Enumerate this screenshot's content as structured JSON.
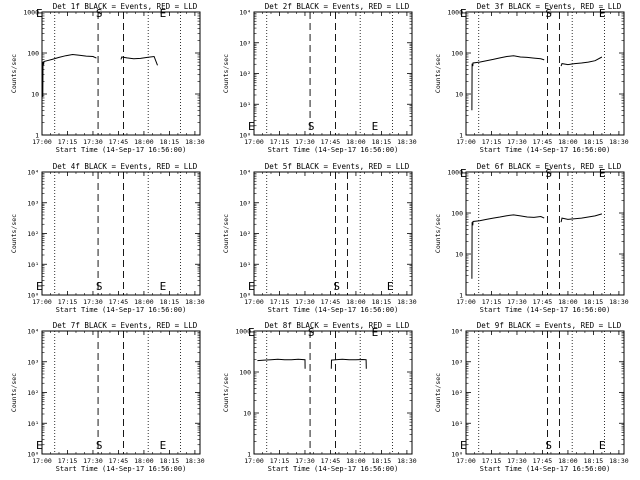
{
  "shared": {
    "x_ticks": [
      "17:00",
      "17:15",
      "17:30",
      "17:45",
      "18:00",
      "18:15",
      "18:30"
    ],
    "y_ticks_log": [
      "1",
      "10",
      "100",
      "1000"
    ],
    "y_ticks_exp": [
      "10⁰",
      "10¹",
      "10²",
      "10³",
      "10⁴"
    ],
    "ylabel": "Counts/sec",
    "marker_E": "E",
    "marker_S": "S"
  },
  "chart_data": [
    {
      "type": "line",
      "title": "Det 1f BLACK = Events, RED = LLD",
      "xlabel": "Start Time (14-Sep-17 16:56:00)",
      "ylabel": "Counts/sec",
      "yscale": "log",
      "ylim": [
        1,
        1000
      ],
      "y_tick_style": "plain",
      "xlim": [
        0,
        93
      ],
      "x_unit": "minutes after 17:00",
      "vlines_dotted": [
        7.5,
        62.5,
        81.5
      ],
      "vlines_dashed": [
        33,
        48
      ],
      "markers": [
        {
          "label": "E",
          "x": -3
        },
        {
          "label": "S",
          "x": 33.5
        },
        {
          "label": "E",
          "x": 71
        }
      ],
      "series": [
        {
          "x": [
            0.5,
            0.6,
            1,
            1.1,
            3,
            6,
            10,
            14,
            18,
            22,
            26,
            30,
            32
          ],
          "y": [
            8.5,
            60,
            55,
            62,
            65,
            70,
            78,
            86,
            92,
            88,
            84,
            82,
            75
          ]
        },
        {
          "x": [
            46.5,
            47,
            50,
            54,
            58,
            62,
            66,
            68
          ],
          "y": [
            70,
            80,
            76,
            72,
            74,
            78,
            82,
            50
          ]
        }
      ]
    },
    {
      "type": "line",
      "title": "Det 2f BLACK = Events, RED = LLD",
      "xlabel": "Start Time (14-Sep-17 16:56:00)",
      "ylabel": "Counts/sec",
      "yscale": "log",
      "ylim": [
        1,
        10000
      ],
      "y_tick_style": "exp",
      "xlim": [
        0,
        93
      ],
      "x_unit": "minutes after 17:00",
      "vlines_dotted": [
        7.5,
        62.5,
        81.5
      ],
      "vlines_dashed": [
        33,
        48
      ],
      "markers": [
        {
          "label": "E",
          "x": -3
        },
        {
          "label": "S",
          "x": 33.5
        },
        {
          "label": "E",
          "x": 71
        }
      ],
      "series": []
    },
    {
      "type": "line",
      "title": "Det 3f BLACK = Events, RED = LLD",
      "xlabel": "Start Time (14-Sep-17 16:56:00)",
      "ylabel": "Counts/sec",
      "yscale": "log",
      "ylim": [
        1,
        1000
      ],
      "y_tick_style": "plain",
      "xlim": [
        0,
        93
      ],
      "x_unit": "minutes after 17:00",
      "vlines_dotted": [
        7.5,
        62.5,
        81.5
      ],
      "vlines_dashed": [
        48,
        55
      ],
      "markers": [
        {
          "label": "E",
          "x": -3
        },
        {
          "label": "S",
          "x": 48.5
        },
        {
          "label": "E",
          "x": 80
        }
      ],
      "series": [
        {
          "x": [
            3.5,
            3.6,
            4,
            4.1,
            8,
            12,
            16,
            20,
            24,
            28,
            32,
            36,
            40,
            44,
            46
          ],
          "y": [
            4,
            55,
            48,
            57,
            60,
            65,
            70,
            76,
            82,
            86,
            80,
            78,
            75,
            72,
            68
          ]
        },
        {
          "x": [
            56,
            56.5,
            60,
            64,
            68,
            72,
            76,
            80
          ],
          "y": [
            48,
            55,
            52,
            55,
            57,
            60,
            65,
            80
          ]
        }
      ]
    },
    {
      "type": "line",
      "title": "Det 4f BLACK = Events, RED = LLD",
      "xlabel": "Start Time (14-Sep-17 16:56:00)",
      "ylabel": "Counts/sec",
      "yscale": "log",
      "ylim": [
        1,
        10000
      ],
      "y_tick_style": "exp",
      "xlim": [
        0,
        93
      ],
      "x_unit": "minutes after 17:00",
      "vlines_dotted": [
        7.5,
        62.5,
        81.5
      ],
      "vlines_dashed": [
        33,
        48
      ],
      "markers": [
        {
          "label": "E",
          "x": -3
        },
        {
          "label": "S",
          "x": 33.5
        },
        {
          "label": "E",
          "x": 71
        }
      ],
      "series": []
    },
    {
      "type": "line",
      "title": "Det 5f BLACK = Events, RED = LLD",
      "xlabel": "Start Time (14-Sep-17 16:56:00)",
      "ylabel": "Counts/sec",
      "yscale": "log",
      "ylim": [
        1,
        10000
      ],
      "y_tick_style": "exp",
      "xlim": [
        0,
        93
      ],
      "x_unit": "minutes after 17:00",
      "vlines_dotted": [
        7.5,
        62.5,
        81.5
      ],
      "vlines_dashed": [
        48,
        55
      ],
      "markers": [
        {
          "label": "E",
          "x": -3
        },
        {
          "label": "S",
          "x": 48.5
        },
        {
          "label": "E",
          "x": 80
        }
      ],
      "series": []
    },
    {
      "type": "line",
      "title": "Det 6f BLACK = Events, RED = LLD",
      "xlabel": "Start Time (14-Sep-17 16:56:00)",
      "ylabel": "Counts/sec",
      "yscale": "log",
      "ylim": [
        1,
        1000
      ],
      "y_tick_style": "plain",
      "xlim": [
        0,
        93
      ],
      "x_unit": "minutes after 17:00",
      "vlines_dotted": [
        7.5,
        62.5,
        81.5
      ],
      "vlines_dashed": [
        48,
        55
      ],
      "markers": [
        {
          "label": "E",
          "x": -3
        },
        {
          "label": "S",
          "x": 48.5
        },
        {
          "label": "E",
          "x": 80
        }
      ],
      "series": [
        {
          "x": [
            3.5,
            3.6,
            4,
            4.1,
            8,
            12,
            16,
            20,
            24,
            28,
            32,
            36,
            40,
            44,
            46
          ],
          "y": [
            2.5,
            60,
            50,
            62,
            65,
            70,
            75,
            80,
            86,
            90,
            85,
            80,
            78,
            82,
            75
          ]
        },
        {
          "x": [
            56,
            56.5,
            60,
            64,
            68,
            72,
            76,
            80
          ],
          "y": [
            60,
            75,
            70,
            72,
            75,
            80,
            85,
            95
          ]
        }
      ]
    },
    {
      "type": "line",
      "title": "Det 7f BLACK = Events, RED = LLD",
      "xlabel": "Start Time (14-Sep-17 16:56:00)",
      "ylabel": "Counts/sec",
      "yscale": "log",
      "ylim": [
        1,
        10000
      ],
      "y_tick_style": "exp",
      "xlim": [
        0,
        93
      ],
      "x_unit": "minutes after 17:00",
      "vlines_dotted": [
        7.5,
        62.5,
        81.5
      ],
      "vlines_dashed": [
        33,
        48
      ],
      "markers": [
        {
          "label": "E",
          "x": -3
        },
        {
          "label": "S",
          "x": 33.5
        },
        {
          "label": "E",
          "x": 71
        }
      ],
      "series": []
    },
    {
      "type": "line",
      "title": "Det 8f BLACK = Events, RED = LLD",
      "xlabel": "Start Time (14-Sep-17 16:56:00)",
      "ylabel": "Counts/sec",
      "yscale": "log",
      "ylim": [
        1,
        1000
      ],
      "y_tick_style": "plain",
      "xlim": [
        0,
        93
      ],
      "x_unit": "minutes after 17:00",
      "vlines_dotted": [
        7.5,
        62.5,
        81.5
      ],
      "vlines_dashed": [
        33,
        48
      ],
      "markers": [
        {
          "label": "E",
          "x": -3
        },
        {
          "label": "S",
          "x": 33.5
        },
        {
          "label": "E",
          "x": 71
        }
      ],
      "series": [
        {
          "x": [
            2,
            6,
            10,
            14,
            18,
            22,
            26,
            30,
            30.1
          ],
          "y": [
            190,
            195,
            200,
            205,
            200,
            198,
            205,
            200,
            120
          ]
        },
        {
          "x": [
            45.5,
            45.6,
            48,
            52,
            56,
            60,
            64,
            66,
            66.1
          ],
          "y": [
            120,
            195,
            200,
            205,
            200,
            198,
            202,
            200,
            120
          ]
        }
      ]
    },
    {
      "type": "line",
      "title": "Det 9f BLACK = Events, RED = LLD",
      "xlabel": "Start Time (14-Sep-17 16:56:00)",
      "ylabel": "Counts/sec",
      "yscale": "log",
      "ylim": [
        1,
        10000
      ],
      "y_tick_style": "exp",
      "xlim": [
        0,
        93
      ],
      "x_unit": "minutes after 17:00",
      "vlines_dotted": [
        7.5,
        62.5,
        81.5
      ],
      "vlines_dashed": [
        48,
        55
      ],
      "markers": [
        {
          "label": "E",
          "x": -3
        },
        {
          "label": "S",
          "x": 48.5
        },
        {
          "label": "E",
          "x": 80
        }
      ],
      "series": []
    }
  ]
}
